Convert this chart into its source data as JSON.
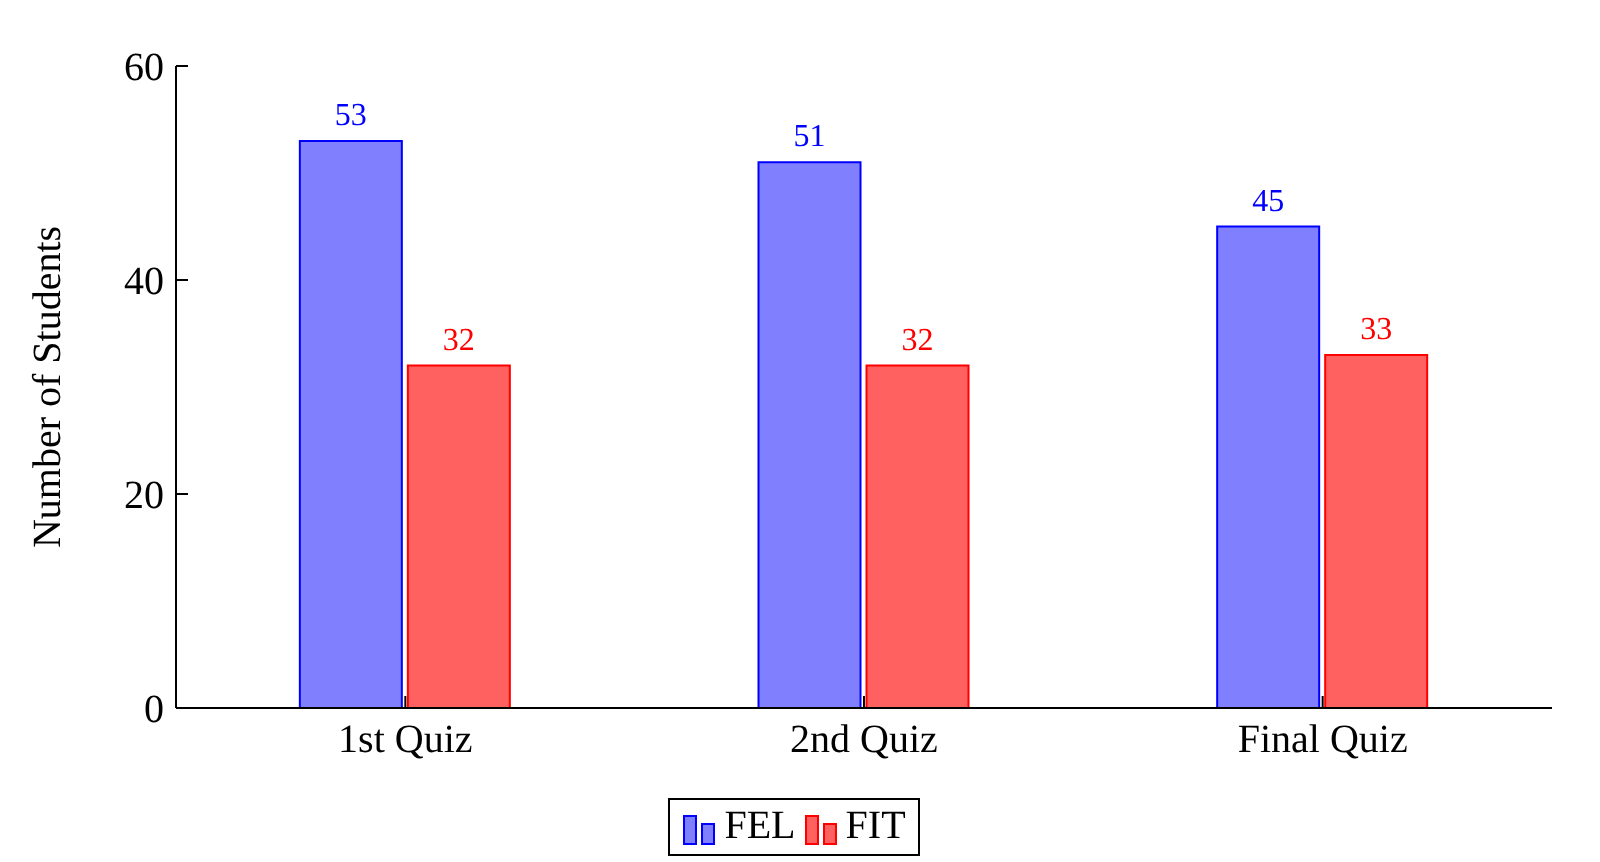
{
  "chart_data": {
    "type": "bar",
    "ylabel": "Number of Students",
    "categories": [
      "1st Quiz",
      "2nd Quiz",
      "Final Quiz"
    ],
    "series": [
      {
        "name": "FEL",
        "color": "#8080ff",
        "values": [
          53,
          51,
          45
        ]
      },
      {
        "name": "FIT",
        "color": "#ff6060",
        "values": [
          32,
          32,
          33
        ]
      }
    ],
    "ylim": [
      0,
      60
    ],
    "yticks": [
      0,
      20,
      40,
      60
    ],
    "data_labels": true,
    "legend": "bottom",
    "grid": false
  }
}
